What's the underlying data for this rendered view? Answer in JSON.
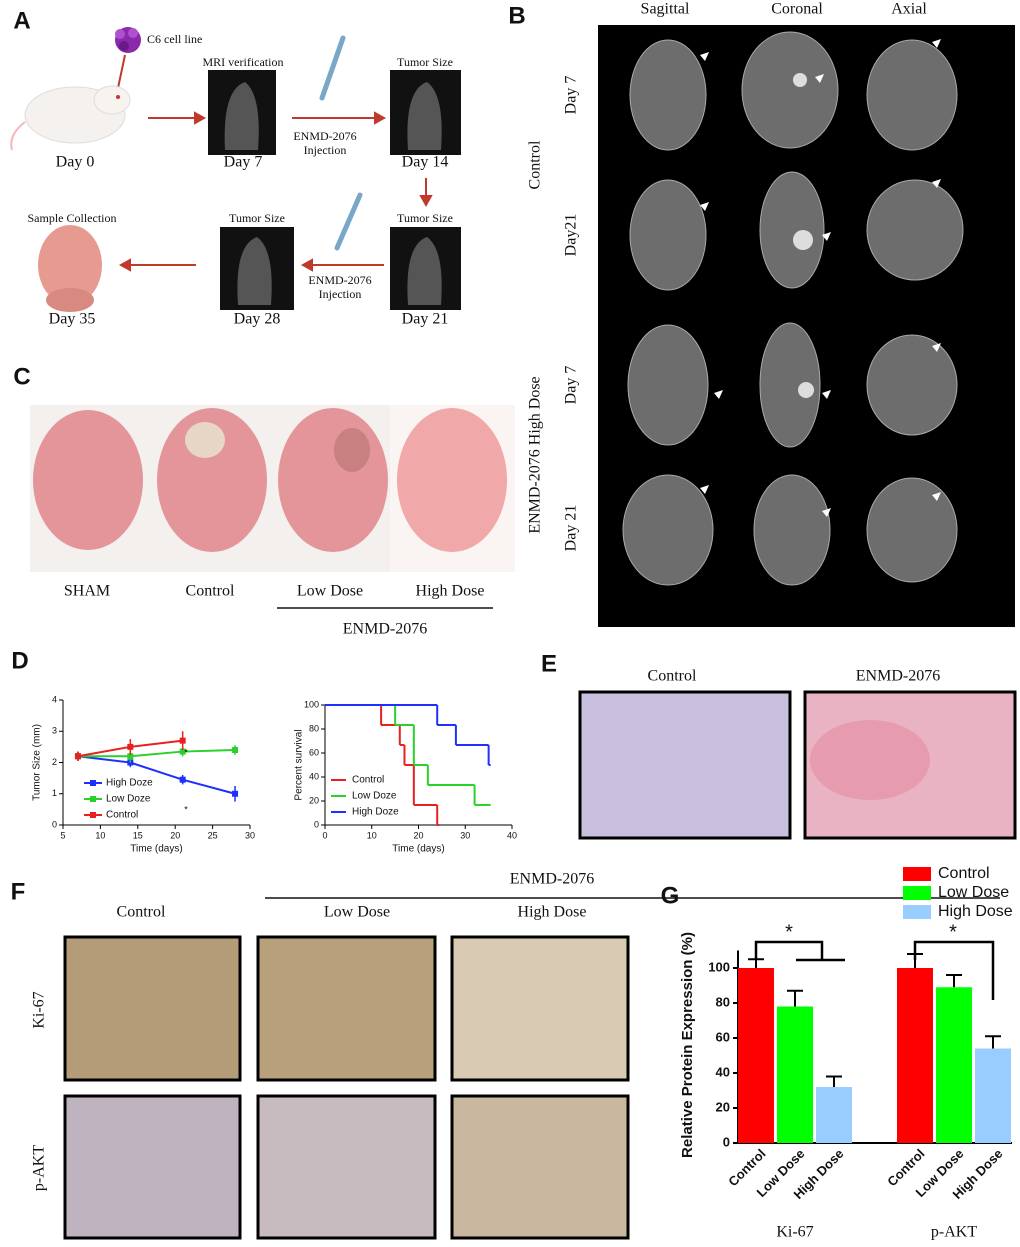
{
  "figure": {
    "panel_labels": [
      "A",
      "B",
      "C",
      "D",
      "E",
      "F",
      "G"
    ],
    "panel_a": {
      "cell_line": "C6 cell line",
      "mri": "MRI verification",
      "tumor_size": [
        "Tumor Size",
        "Tumor Size",
        "Tumor Size"
      ],
      "injection": [
        [
          "ENMD-2076",
          "Injection"
        ],
        [
          "ENMD-2076",
          "Injection"
        ]
      ],
      "sample": "Sample Collection",
      "days": [
        "Day 0",
        "Day 7",
        "Day 14",
        "Day 21",
        "Day 28",
        "Day 35"
      ]
    },
    "panel_b": {
      "columns": [
        "Sagittal",
        "Coronal",
        "Axial"
      ],
      "groups": [
        "Control",
        "ENMD-2076 High Dose"
      ],
      "rows": [
        "Day 7",
        "Day21",
        "Day 7",
        "Day 21"
      ]
    },
    "panel_c": {
      "labels": [
        "SHAM",
        "Control",
        "Low Dose",
        "High Dose"
      ],
      "group": "ENMD-2076"
    },
    "panel_e": {
      "labels": [
        "Control",
        "ENMD-2076"
      ]
    },
    "panel_f": {
      "group": "ENMD-2076",
      "columns": [
        "Control",
        "Low Dose",
        "High Dose"
      ],
      "rows": [
        "Ki-67",
        "p-AKT"
      ]
    }
  },
  "chart_data": [
    {
      "type": "line",
      "xlabel": "Time (days)",
      "ylabel": "Tumor Size (mm)",
      "xlim": [
        5,
        30
      ],
      "xticks": [
        5,
        10,
        15,
        20,
        25,
        30
      ],
      "ylim": [
        0,
        4
      ],
      "yticks": [
        0,
        1,
        2,
        3,
        4
      ],
      "x": [
        7,
        14,
        21,
        28
      ],
      "series": [
        {
          "name": "High Doze",
          "color": "#1f2fff",
          "values": [
            2.2,
            2.0,
            1.45,
            1.0
          ],
          "errors": [
            0.15,
            0.15,
            0.15,
            0.25
          ]
        },
        {
          "name": "Low Doze",
          "color": "#2ad12a",
          "values": [
            2.2,
            2.2,
            2.35,
            2.4
          ],
          "errors": [
            0.15,
            0.2,
            0.15,
            0.15
          ]
        },
        {
          "name": "Control",
          "color": "#e82020",
          "values": [
            2.2,
            2.5,
            2.7,
            null
          ],
          "errors": [
            0.15,
            0.25,
            0.3,
            null
          ]
        }
      ],
      "annotations": [
        "*",
        "*"
      ]
    },
    {
      "type": "step",
      "xlabel": "Time (days)",
      "ylabel": "Percent survival",
      "xlim": [
        0,
        40
      ],
      "xticks": [
        0,
        10,
        20,
        30,
        40
      ],
      "ylim": [
        0,
        100
      ],
      "yticks": [
        0,
        20,
        40,
        60,
        80,
        100
      ],
      "series": [
        {
          "name": "Control",
          "color": "#e82020",
          "x": [
            0,
            12,
            16,
            17,
            19,
            24
          ],
          "values": [
            100,
            83.3,
            66.7,
            50,
            16.7,
            0
          ]
        },
        {
          "name": "Low Doze",
          "color": "#2ad12a",
          "x": [
            0,
            15,
            19,
            22,
            32,
            35
          ],
          "values": [
            100,
            83.3,
            50,
            33.3,
            16.7,
            16.7
          ]
        },
        {
          "name": "High Doze",
          "color": "#1f2fff",
          "x": [
            0,
            24,
            28,
            35
          ],
          "values": [
            100,
            83.3,
            66.7,
            50
          ]
        }
      ]
    },
    {
      "type": "bar",
      "ylabel": "Relative Protein Expression (%)",
      "categories": [
        "Ki-67",
        "p-AKT"
      ],
      "ylim": [
        0,
        110
      ],
      "yticks": [
        0,
        20,
        40,
        60,
        80,
        100
      ],
      "legend": "top-right",
      "series": [
        {
          "name": "Control",
          "color": "#ff0000",
          "values": [
            100,
            100
          ],
          "errors": [
            5,
            8
          ]
        },
        {
          "name": "Low Dose",
          "color": "#00ff00",
          "values": [
            78,
            89
          ],
          "errors": [
            9,
            7
          ]
        },
        {
          "name": "High Dose",
          "color": "#99ccff",
          "values": [
            32,
            54
          ],
          "errors": [
            6,
            7
          ]
        }
      ],
      "annotations": [
        "*",
        "*"
      ]
    }
  ]
}
